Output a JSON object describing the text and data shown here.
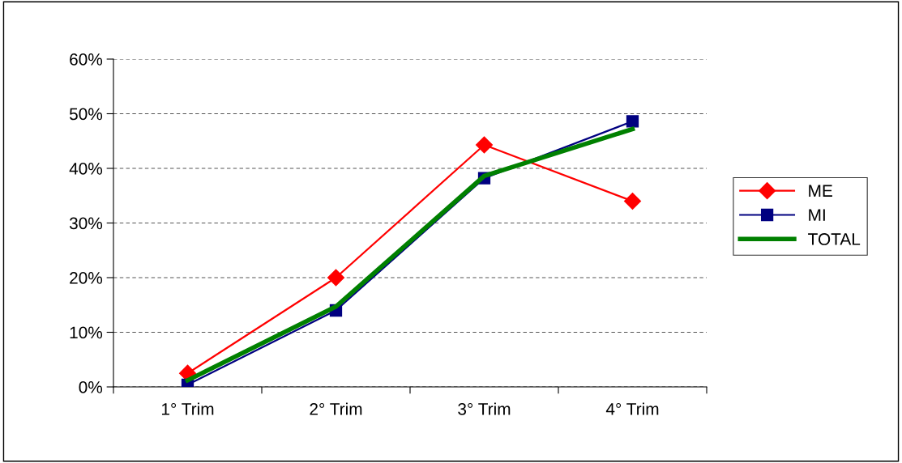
{
  "chart_data": {
    "type": "line",
    "categories": [
      "1° Trim",
      "2° Trim",
      "3° Trim",
      "4° Trim"
    ],
    "series": [
      {
        "name": "ME",
        "color": "#ff0000",
        "values": [
          0.025,
          0.2,
          0.443,
          0.34
        ],
        "marker": "diamond"
      },
      {
        "name": "MI",
        "color": "#000080",
        "values": [
          0.004,
          0.14,
          0.382,
          0.486
        ],
        "marker": "square"
      },
      {
        "name": "TOTAL",
        "color": "#008000",
        "values": [
          0.012,
          0.147,
          0.386,
          0.472
        ],
        "marker": "none"
      }
    ],
    "ylim": [
      0,
      0.6
    ],
    "yticks": [
      {
        "value": 0,
        "label": "0%"
      },
      {
        "value": 0.1,
        "label": "10%"
      },
      {
        "value": 0.2,
        "label": "20%"
      },
      {
        "value": 0.3,
        "label": "30%"
      },
      {
        "value": 0.4,
        "label": "40%"
      },
      {
        "value": 0.5,
        "label": "50%"
      },
      {
        "value": 0.6,
        "label": "60%"
      }
    ],
    "grid": "y",
    "legend": "right",
    "line_style": "solid"
  }
}
